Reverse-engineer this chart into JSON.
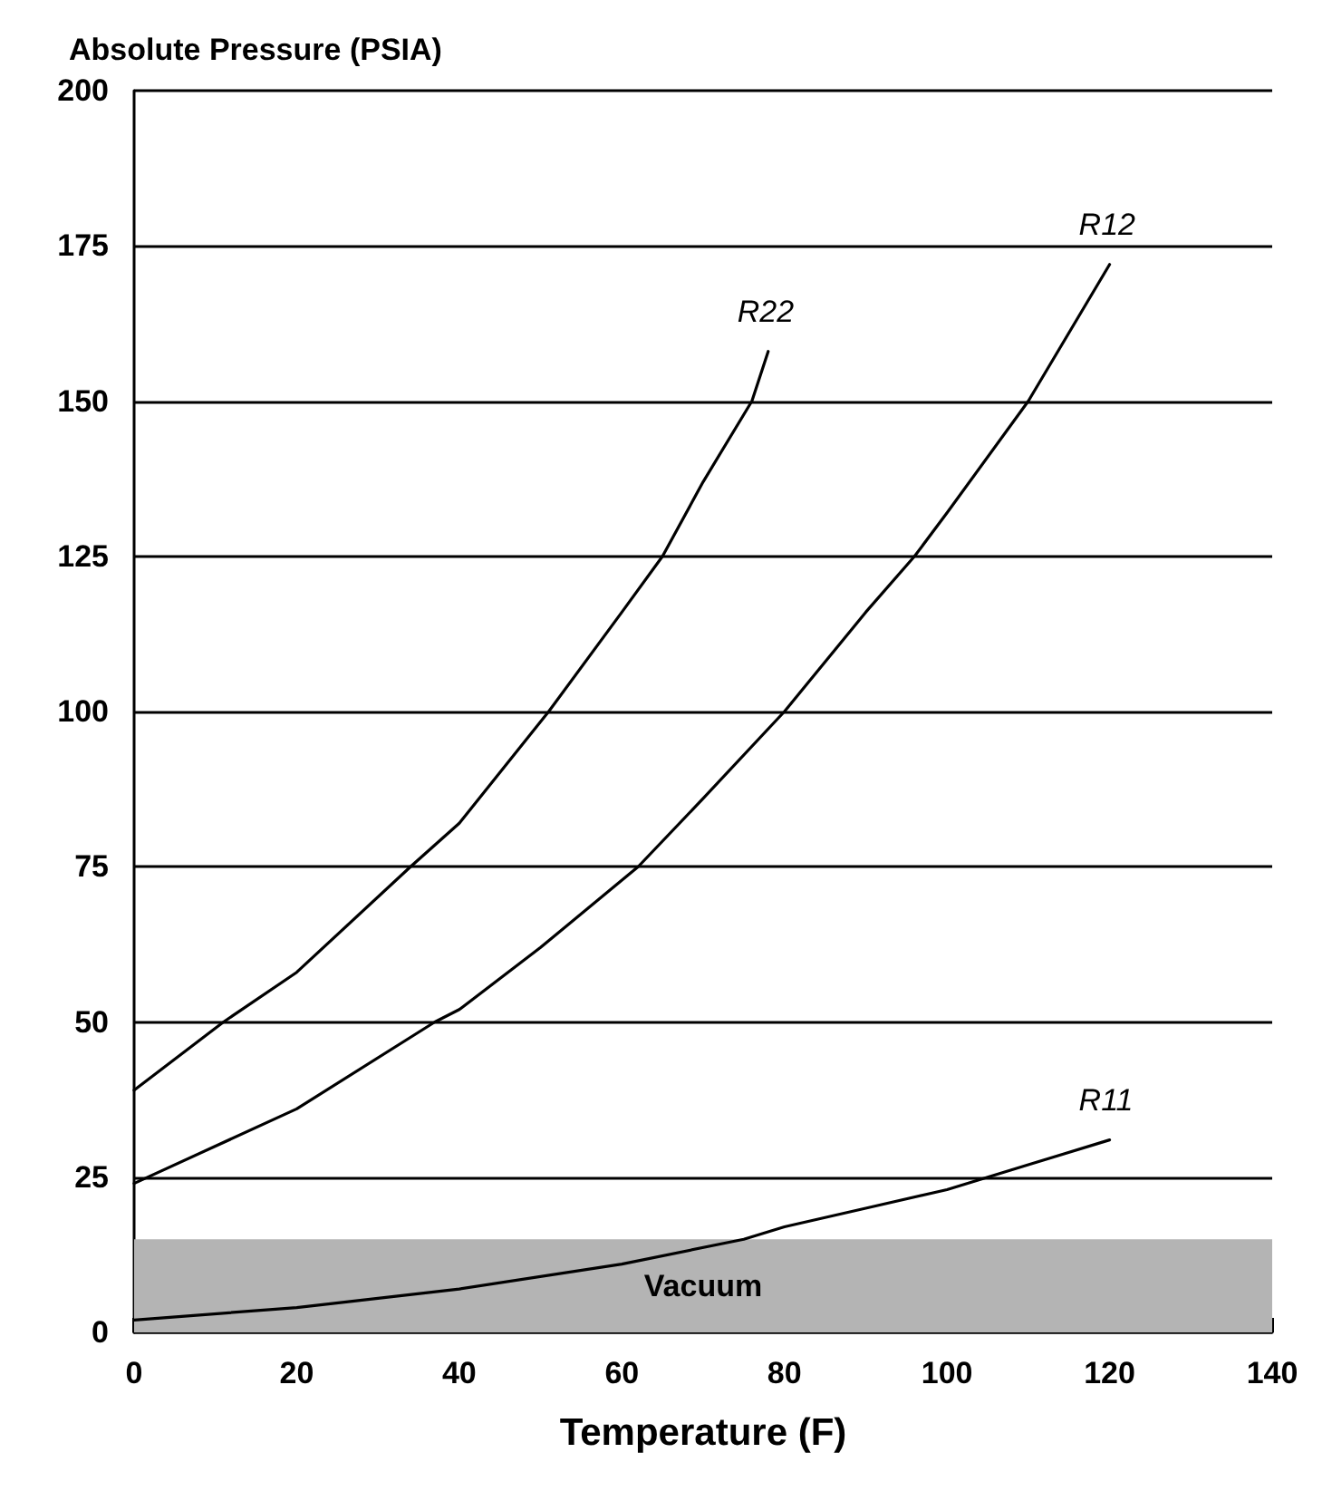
{
  "chart_data": {
    "type": "line",
    "xlabel": "Temperature (F)",
    "ylabel": "Absolute Pressure (PSIA)",
    "xlim": [
      0,
      140
    ],
    "xticks": [
      0,
      20,
      40,
      60,
      80,
      100,
      120,
      140
    ],
    "ylim": [
      0,
      200
    ],
    "yticks": [
      0,
      25,
      50,
      75,
      100,
      125,
      150,
      175,
      200
    ],
    "grid": "y",
    "legend": false,
    "marker": "none",
    "line_style": "solid",
    "bands": [
      {
        "axis": "y",
        "from": 0,
        "to": 15,
        "label": "Vacuum",
        "color": "#b4b4b4"
      }
    ],
    "series": [
      {
        "name": "R22",
        "color": "#000000",
        "x": [
          0,
          11,
          20,
          34,
          40,
          51,
          60,
          65,
          70,
          76,
          78
        ],
        "values": [
          39,
          50,
          58,
          75,
          82,
          100,
          116,
          125,
          137,
          150,
          158
        ]
      },
      {
        "name": "R12",
        "color": "#000000",
        "x": [
          0,
          20,
          37,
          40,
          50,
          62,
          70,
          80,
          90,
          96,
          100,
          110,
          120
        ],
        "values": [
          24,
          36,
          50,
          52,
          62,
          75,
          86,
          100,
          116,
          125,
          132,
          150,
          172
        ]
      },
      {
        "name": "R11",
        "color": "#000000",
        "x": [
          0,
          20,
          40,
          60,
          75,
          80,
          90,
          100,
          110,
          120
        ],
        "values": [
          2,
          4,
          7,
          11,
          15,
          17,
          20,
          23,
          27,
          31
        ]
      }
    ]
  }
}
